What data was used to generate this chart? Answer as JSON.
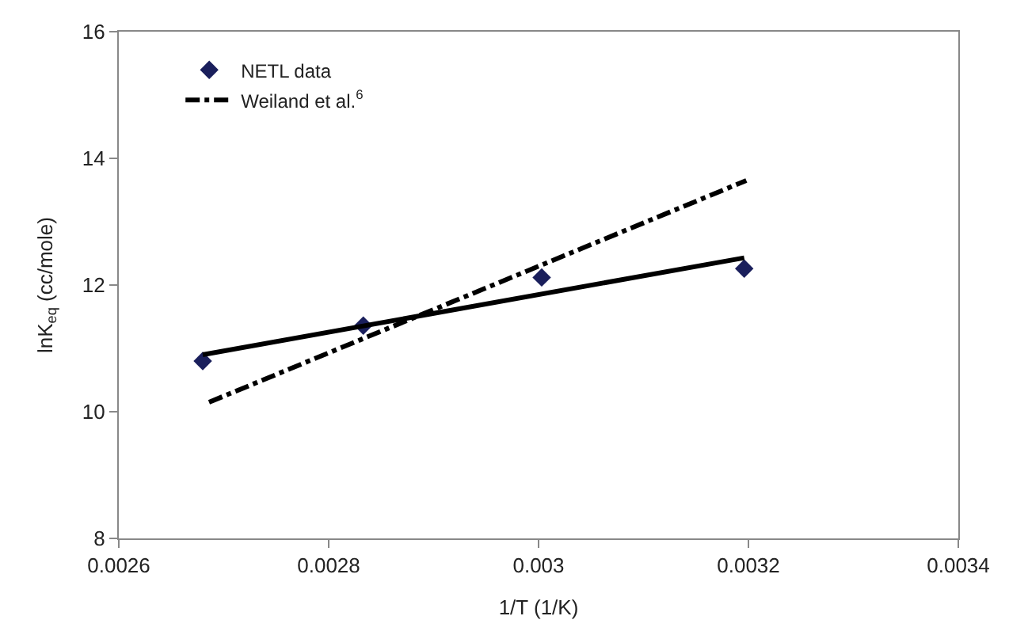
{
  "chart_data": {
    "type": "scatter",
    "xlabel": "1/T (1/K)",
    "ylabel": "lnK$_{eq}$ (cc/mole)",
    "xlim": [
      0.0026,
      0.0034
    ],
    "xticks": [
      0.0026,
      0.0028,
      0.003,
      0.0032,
      0.0034
    ],
    "ylim": [
      8,
      16
    ],
    "yticks": [
      8,
      10,
      12,
      14,
      16
    ],
    "legend": "top left",
    "series": [
      {
        "name": "NETL data",
        "marker": "diamond",
        "color": "#1a1f5c",
        "x": [
          0.00268,
          0.002833,
          0.003003,
          0.003196
        ],
        "values": [
          10.8,
          11.36,
          12.12,
          12.26
        ]
      },
      {
        "type": "line",
        "marker": "none",
        "line_style": "solid",
        "color": "#000000",
        "x": [
          0.00268,
          0.003196
        ],
        "values": [
          10.9,
          12.43
        ]
      },
      {
        "name": "Weiland et al.$^{6}$",
        "type": "line",
        "marker": "none",
        "line_style": "dashdot",
        "color": "#000000",
        "x": [
          0.002686,
          0.003198
        ],
        "values": [
          10.15,
          13.65
        ]
      }
    ]
  }
}
